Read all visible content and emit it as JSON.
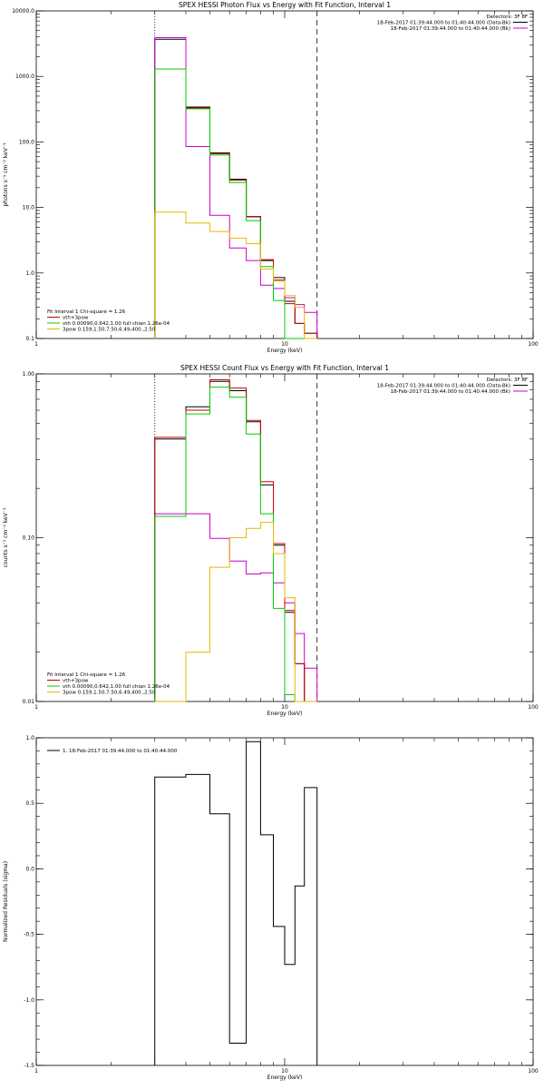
{
  "chart_data": [
    {
      "type": "line",
      "title": "SPEX HESSI Photon Flux vs Energy with Fit Function, Interval 1",
      "xlabel": "Energy (keV)",
      "ylabel": "photons s⁻¹ cm⁻² keV⁻¹",
      "xscale": "log",
      "yscale": "log",
      "xlim": [
        1,
        100
      ],
      "ylim": [
        0.1,
        10000
      ],
      "xticks": [
        {
          "v": 1,
          "label": "1"
        },
        {
          "v": 10,
          "label": "10"
        },
        {
          "v": 100,
          "label": "100"
        }
      ],
      "yticks": [
        {
          "v": 0.1,
          "label": "0.1"
        },
        {
          "v": 1,
          "label": "1.0"
        },
        {
          "v": 10,
          "label": "10.0"
        },
        {
          "v": 100,
          "label": "100.0"
        },
        {
          "v": 1000,
          "label": "1000.0"
        },
        {
          "v": 10000,
          "label": "10000.0"
        }
      ],
      "vlines": [
        {
          "x": 3.0,
          "style": "dotted"
        },
        {
          "x": 13.5,
          "style": "dashed"
        }
      ],
      "edges": [
        3,
        4,
        5,
        6,
        7,
        8,
        9,
        10,
        11,
        12,
        13.5
      ],
      "series": [
        {
          "name": "data",
          "color": "#000000",
          "values": [
            3700,
            340,
            68,
            27,
            7.2,
            1.55,
            0.85,
            0.37,
            0.17,
            0.12
          ]
        },
        {
          "name": "data (bk)",
          "color": "#cc00cc",
          "values": [
            3900,
            85,
            7.6,
            2.4,
            1.55,
            0.65,
            0.58,
            0.42,
            0.33,
            0.25
          ]
        },
        {
          "name": "vth+3pow",
          "color": "#cc0000",
          "values": [
            1300,
            330,
            66,
            26,
            7.3,
            1.6,
            0.78,
            0.34,
            0.17,
            0.12
          ]
        },
        {
          "name": "vth",
          "color": "#00cc00",
          "values": [
            1300,
            320,
            63,
            24,
            6.3,
            1.25,
            0.38,
            0.1,
            0.1,
            0.1
          ]
        },
        {
          "name": "3pow",
          "color": "#e6b800",
          "values": [
            8.5,
            5.8,
            4.3,
            3.4,
            2.8,
            1.15,
            0.75,
            0.45,
            0.3,
            0.1
          ]
        }
      ],
      "legend_right": [
        {
          "text": "Detectors: 3F 8F",
          "color": null
        },
        {
          "text": "18-Feb-2017 01:39:44.000 to 01:40:44.000 (Data-Bk)",
          "color": "#000000"
        },
        {
          "text": "18-Feb-2017 01:39:44.000 to 01:40:44.000 (Bk)",
          "color": "#cc00cc"
        }
      ],
      "legend_left": [
        {
          "text": "Fit Interval 1   Chi-square = 1.26",
          "color": null
        },
        {
          "text": "vth+3pow",
          "color": "#cc0000"
        },
        {
          "text": "vth 0.00090,0.642,1.00  full chian 1.26e-04",
          "color": "#00cc00"
        },
        {
          "text": "3pow 0.159,1.50,7.50,6.49,400.,2.50",
          "color": "#e6b800"
        }
      ]
    },
    {
      "type": "line",
      "title": "SPEX HESSI Count Flux vs Energy with Fit Function, Interval 1",
      "xlabel": "Energy (keV)",
      "ylabel": "counts s⁻¹ cm⁻² keV⁻¹",
      "xscale": "log",
      "yscale": "log",
      "xlim": [
        1,
        100
      ],
      "ylim": [
        0.01,
        1
      ],
      "xticks": [
        {
          "v": 1,
          "label": "1"
        },
        {
          "v": 10,
          "label": "10"
        },
        {
          "v": 100,
          "label": "100"
        }
      ],
      "yticks": [
        {
          "v": 0.01,
          "label": "0.01"
        },
        {
          "v": 0.1,
          "label": "0.10"
        },
        {
          "v": 1,
          "label": "1.00"
        }
      ],
      "vlines": [
        {
          "x": 3.0,
          "style": "dotted"
        },
        {
          "x": 13.5,
          "style": "dashed"
        }
      ],
      "edges": [
        3,
        4,
        5,
        6,
        7,
        8,
        9,
        10,
        11,
        12,
        13.5
      ],
      "series": [
        {
          "name": "data",
          "color": "#000000",
          "values": [
            0.4,
            0.63,
            0.9,
            0.79,
            0.51,
            0.21,
            0.09,
            0.035,
            0.017,
            0.01
          ]
        },
        {
          "name": "data (bk)",
          "color": "#cc00cc",
          "values": [
            0.14,
            0.14,
            0.099,
            0.072,
            0.06,
            0.061,
            0.053,
            0.04,
            0.026,
            0.016
          ]
        },
        {
          "name": "vth+3pow",
          "color": "#cc0000",
          "values": [
            0.41,
            0.6,
            0.92,
            0.82,
            0.52,
            0.22,
            0.092,
            0.036,
            0.017,
            0.01
          ]
        },
        {
          "name": "vth",
          "color": "#00cc00",
          "values": [
            0.135,
            0.57,
            0.83,
            0.72,
            0.43,
            0.14,
            0.037,
            0.011,
            0.01,
            0.01
          ]
        },
        {
          "name": "3pow",
          "color": "#e6b800",
          "values": [
            0.01,
            0.02,
            0.066,
            0.1,
            0.114,
            0.124,
            0.08,
            0.043,
            0.01,
            0.01
          ]
        }
      ],
      "legend_right": [
        {
          "text": "Detectors: 3F 8F",
          "color": null
        },
        {
          "text": "18-Feb-2017 01:39:44.000 to 01:40:44.000 (Data-Bk)",
          "color": "#000000"
        },
        {
          "text": "18-Feb-2017 01:39:44.000 to 01:40:44.000 (Bk)",
          "color": "#cc00cc"
        }
      ],
      "legend_left": [
        {
          "text": "Fit Interval 1   Chi-square = 1.26",
          "color": null
        },
        {
          "text": "vth+3pow",
          "color": "#cc0000"
        },
        {
          "text": "vth 0.00090,0.642,1.00  full chian 1.26e-04",
          "color": "#00cc00"
        },
        {
          "text": "3pow 0.159,1.50,7.50,6.49,400.,2.50",
          "color": "#e6b800"
        }
      ]
    },
    {
      "type": "line",
      "title": "",
      "xlabel": "Energy (keV)",
      "ylabel": "Normalized Residuals (sigma)",
      "xscale": "log",
      "yscale": "linear",
      "xlim": [
        1,
        100
      ],
      "ylim": [
        -1.5,
        1.0
      ],
      "xticks": [
        {
          "v": 1,
          "label": "1"
        },
        {
          "v": 10,
          "label": "10"
        },
        {
          "v": 100,
          "label": "100"
        }
      ],
      "yticks": [
        {
          "v": -1.5,
          "label": "-1.5"
        },
        {
          "v": -1.0,
          "label": "-1.0"
        },
        {
          "v": -0.5,
          "label": "-0.5"
        },
        {
          "v": 0.0,
          "label": "0.0"
        },
        {
          "v": 0.5,
          "label": "0.5"
        },
        {
          "v": 1.0,
          "label": "1.0"
        }
      ],
      "vlines": [],
      "edges": [
        3,
        4,
        5,
        6,
        7,
        8,
        9,
        10,
        11,
        12,
        13.5
      ],
      "series": [
        {
          "name": "residuals",
          "color": "#000000",
          "values": [
            0.7,
            0.72,
            0.42,
            -1.33,
            0.97,
            0.26,
            -0.44,
            -0.73,
            -0.13,
            0.62
          ]
        }
      ],
      "legend_right": [],
      "legend_left": [],
      "legend_top": [
        {
          "text": "1. 18-Feb-2017 01:39:44.000 to 01:40:44.000",
          "color": "#000000"
        }
      ]
    }
  ]
}
